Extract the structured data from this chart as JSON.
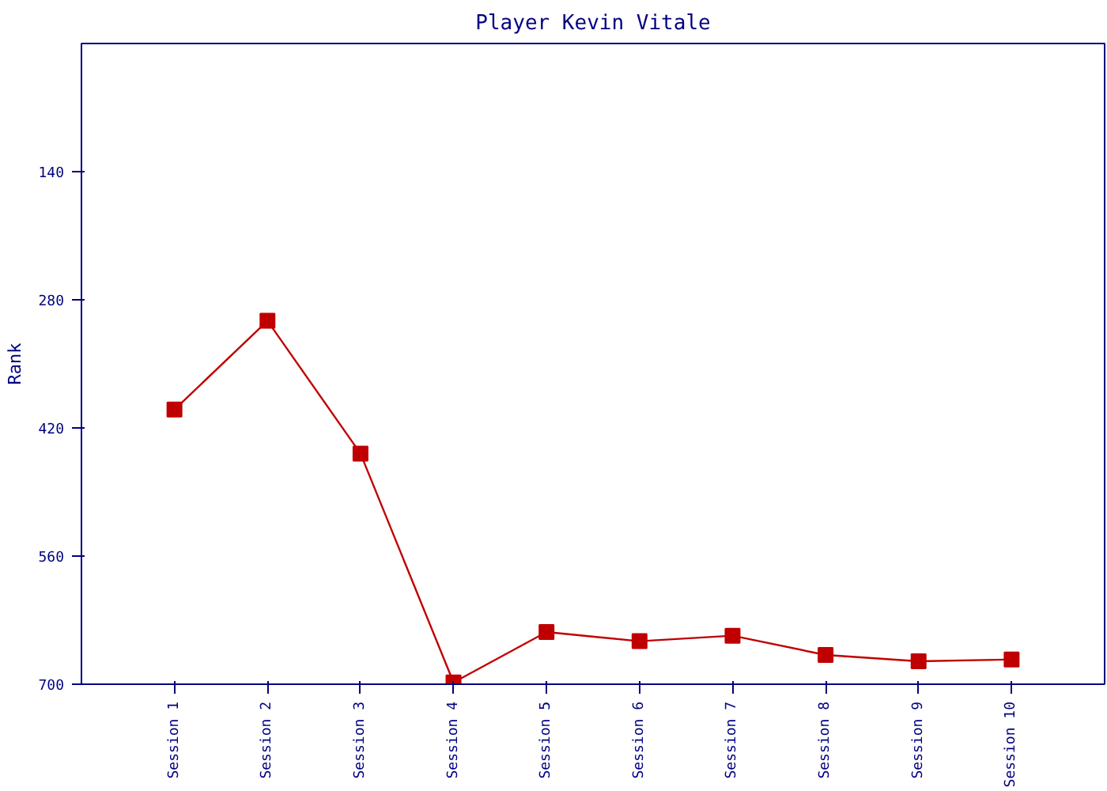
{
  "chart_data": {
    "type": "line",
    "title": "Player Kevin Vitale",
    "ylabel": "Rank",
    "categories": [
      "Session 1",
      "Session 2",
      "Session 3",
      "Session 4",
      "Session 5",
      "Session 6",
      "Session 7",
      "Session 8",
      "Session 9",
      "Session 10"
    ],
    "series": [
      {
        "color": "#c00000",
        "values": [
          400,
          303,
          448,
          698,
          643,
          653,
          647,
          668,
          675,
          673
        ]
      }
    ],
    "ylim": [
      700,
      0
    ],
    "yticks": [
      140,
      280,
      420,
      560,
      700
    ],
    "grid": false,
    "marker": "square",
    "line_style": "solid"
  }
}
